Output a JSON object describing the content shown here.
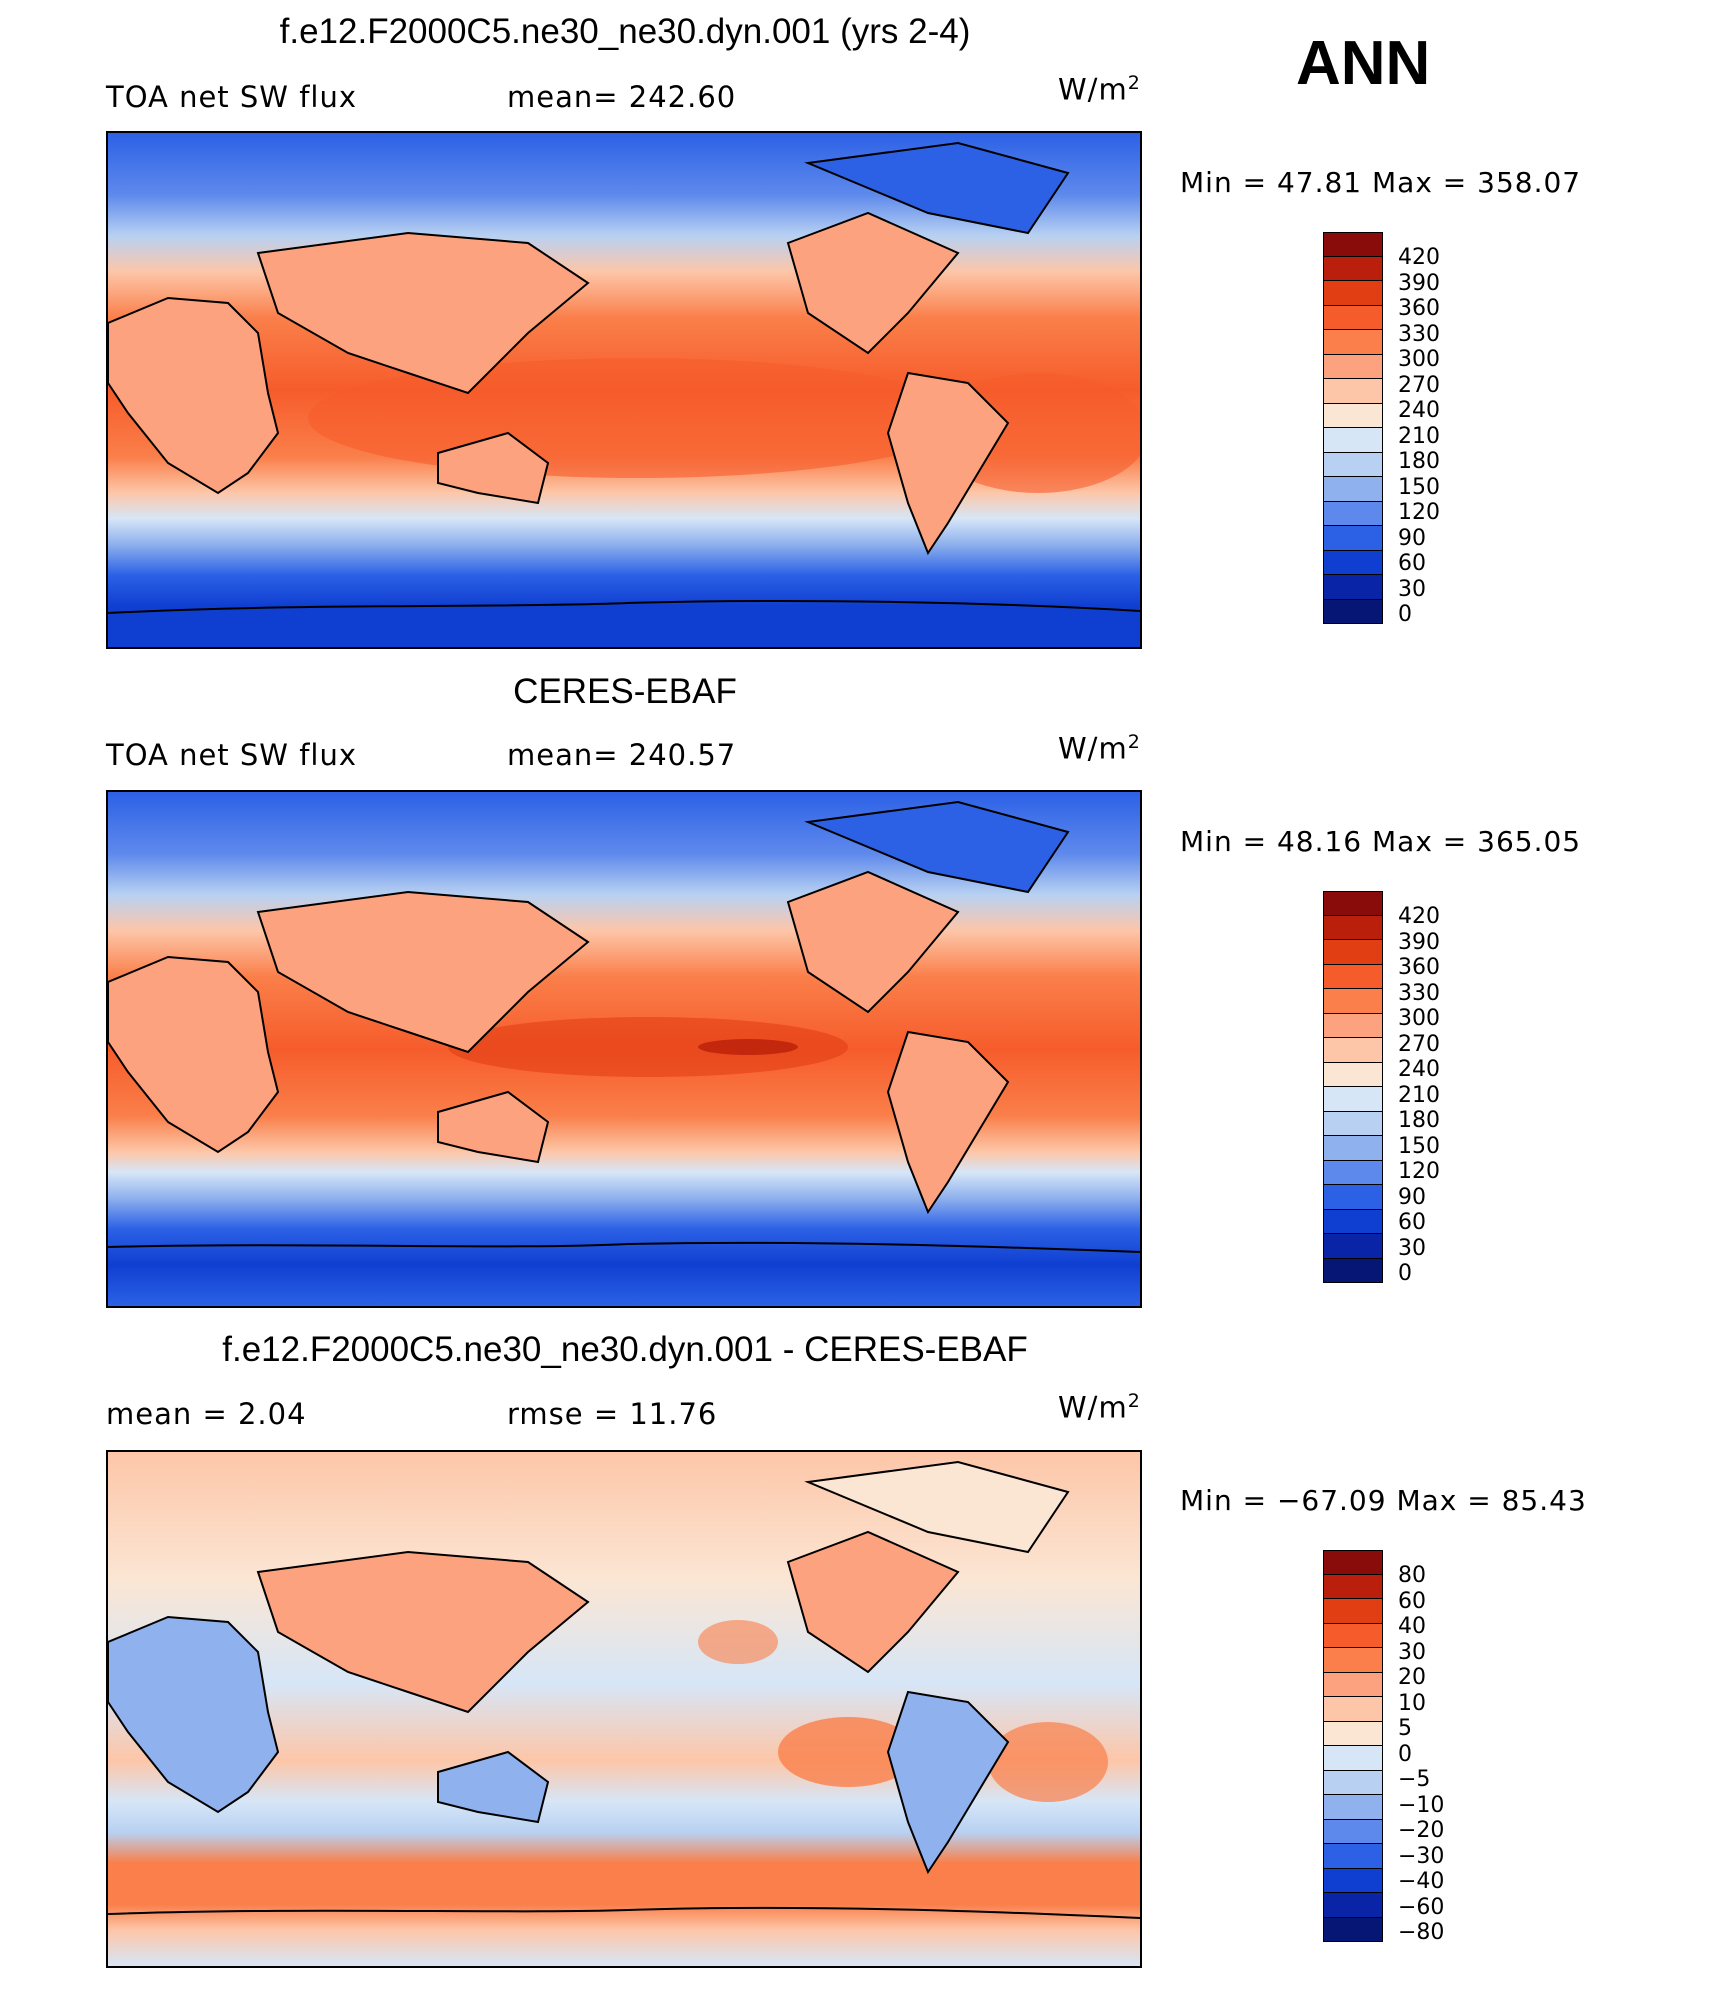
{
  "season": "ANN",
  "panels": [
    {
      "title": "f.e12.F2000C5.ne30_ne30.dyn.001 (yrs 2-4)",
      "left_label": "TOA net SW flux",
      "center_label": "mean=  242.60",
      "units": "W/m",
      "units_exp": "2",
      "minmax": "Min  =    47.81  Max  =  358.07",
      "colorbar_labels": [
        "420",
        "390",
        "360",
        "330",
        "300",
        "270",
        "240",
        "210",
        "180",
        "150",
        "120",
        "90",
        "60",
        "30",
        "0"
      ],
      "colorbar_colors": [
        "#8a0c0a",
        "#b91f0a",
        "#e23e14",
        "#f65c2b",
        "#fa7f4a",
        "#fca27e",
        "#fdc6a8",
        "#fbe6d4",
        "#d6e6f7",
        "#b8d1f2",
        "#8fb1ed",
        "#5e89ec",
        "#2c61e6",
        "#0f3fd1",
        "#0a24a8",
        "#061675"
      ]
    },
    {
      "title": "CERES-EBAF",
      "left_label": "TOA net SW flux",
      "center_label": "mean=  240.57",
      "units": "W/m",
      "units_exp": "2",
      "minmax": "Min  =    48.16  Max  =  365.05",
      "colorbar_labels": [
        "420",
        "390",
        "360",
        "330",
        "300",
        "270",
        "240",
        "210",
        "180",
        "150",
        "120",
        "90",
        "60",
        "30",
        "0"
      ],
      "colorbar_colors": [
        "#8a0c0a",
        "#b91f0a",
        "#e23e14",
        "#f65c2b",
        "#fa7f4a",
        "#fca27e",
        "#fdc6a8",
        "#fbe6d4",
        "#d6e6f7",
        "#b8d1f2",
        "#8fb1ed",
        "#5e89ec",
        "#2c61e6",
        "#0f3fd1",
        "#0a24a8",
        "#061675"
      ]
    },
    {
      "title": "f.e12.F2000C5.ne30_ne30.dyn.001 - CERES-EBAF",
      "left_label": "mean  =     2.04",
      "center_label": "rmse  =    11.76",
      "units": "W/m",
      "units_exp": "2",
      "minmax": "Min  = −67.09  Max  =    85.43",
      "colorbar_labels": [
        "80",
        "60",
        "40",
        "30",
        "20",
        "10",
        "5",
        "0",
        "−5",
        "−10",
        "−20",
        "−30",
        "−40",
        "−60",
        "−80"
      ],
      "colorbar_colors": [
        "#8a0c0a",
        "#b91f0a",
        "#e23e14",
        "#f65c2b",
        "#fa7f4a",
        "#fca27e",
        "#fdc6a8",
        "#fbe6d4",
        "#d6e6f7",
        "#b8d1f2",
        "#8fb1ed",
        "#5e89ec",
        "#2c61e6",
        "#0f3fd1",
        "#0a24a8",
        "#061675"
      ]
    }
  ]
}
